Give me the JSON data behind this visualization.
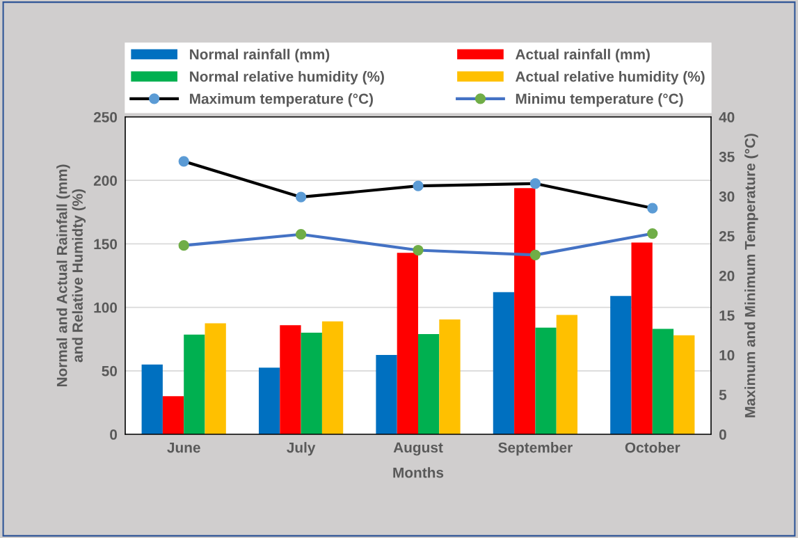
{
  "chart_data": {
    "type": "bar",
    "xlabel": "Months",
    "ylabel": "Normal and Actual Rainfall (mm)\nand Relative Humidty (%)",
    "y2label": "Maximum and Minimum Temperature (°C)",
    "categories": [
      "June",
      "July",
      "August",
      "September",
      "October"
    ],
    "series": [
      {
        "name": "Normal rainfall (mm)",
        "color": "#0070c0",
        "values": [
          55,
          52.5,
          62.5,
          112,
          109
        ]
      },
      {
        "name": "Actual rainfall (mm)",
        "color": "#ff0000",
        "values": [
          30,
          86,
          143,
          194,
          151
        ]
      },
      {
        "name": "Normal relative humidity (%)",
        "color": "#00b050",
        "values": [
          78.5,
          80,
          79,
          84,
          83
        ]
      },
      {
        "name": "Actual relative humidity (%)",
        "color": "#ffc000",
        "values": [
          87.5,
          89,
          90.5,
          94,
          78
        ]
      },
      {
        "name": "Maximum temperature (°C)",
        "type": "line",
        "axis": "y2",
        "color": "#000000",
        "colors": [
          "#5b9bd5",
          "#5b9bd5",
          "#5b9bd5",
          "#5b9bd5",
          "#5b9bd5"
        ],
        "values": [
          34.4,
          29.9,
          31.3,
          31.6,
          28.5
        ]
      },
      {
        "name": "Minimu temperature (°C)",
        "type": "line",
        "axis": "y2",
        "color": "#4472c4",
        "colors": [
          "#70ad47",
          "#70ad47",
          "#70ad47",
          "#70ad47",
          "#70ad47"
        ],
        "values": [
          23.8,
          25.2,
          23.2,
          22.6,
          25.3
        ]
      }
    ],
    "ylim": [
      0,
      250
    ],
    "yticks": [
      0,
      50,
      100,
      150,
      200,
      250
    ],
    "y2lim": [
      0,
      40
    ],
    "y2ticks": [
      0,
      5,
      10,
      15,
      20,
      25,
      30,
      35,
      40
    ],
    "grid": "y",
    "legend": "top",
    "marker": "circle",
    "line_style": "solid"
  }
}
